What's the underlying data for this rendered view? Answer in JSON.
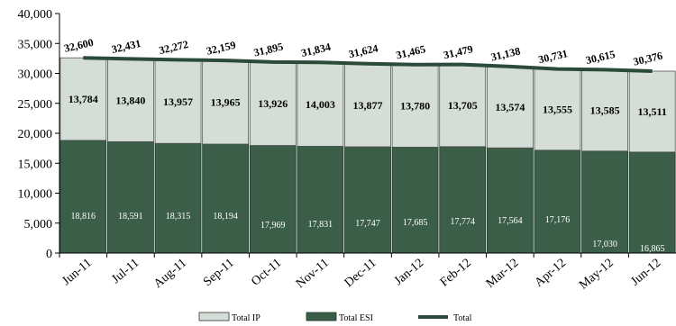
{
  "chart_data": {
    "type": "bar",
    "stacked": true,
    "categories": [
      "Jun-11",
      "Jul-11",
      "Aug-11",
      "Sep-11",
      "Oct-11",
      "Nov-11",
      "Dec-11",
      "Jan-12",
      "Feb-12",
      "Mar-12",
      "Apr-12",
      "May-12",
      "Jun-12"
    ],
    "series": [
      {
        "name": "Total ESI",
        "role": "bar",
        "color": "#3b5e49",
        "values": [
          18816,
          18591,
          18315,
          18194,
          17969,
          17831,
          17747,
          17685,
          17774,
          17564,
          17176,
          17030,
          16865
        ]
      },
      {
        "name": "Total IP",
        "role": "bar",
        "color": "#d4ddd6",
        "values": [
          13784,
          13840,
          13957,
          13965,
          13926,
          14003,
          13877,
          13780,
          13705,
          13574,
          13555,
          13585,
          13511
        ]
      },
      {
        "name": "Total",
        "role": "line",
        "color": "#2a4a3a",
        "values": [
          32600,
          32431,
          32272,
          32159,
          31895,
          31834,
          31624,
          31465,
          31479,
          31138,
          30731,
          30615,
          30376
        ]
      }
    ],
    "ylim": [
      0,
      40000
    ],
    "yticks": [
      0,
      5000,
      10000,
      15000,
      20000,
      25000,
      30000,
      35000,
      40000
    ],
    "ytick_labels": [
      "0",
      "5,000",
      "10,000",
      "15,000",
      "20,000",
      "25,000",
      "30,000",
      "35,000",
      "40,000"
    ],
    "title": "",
    "xlabel": "",
    "ylabel": "",
    "legend_position": "bottom",
    "grid": false
  }
}
